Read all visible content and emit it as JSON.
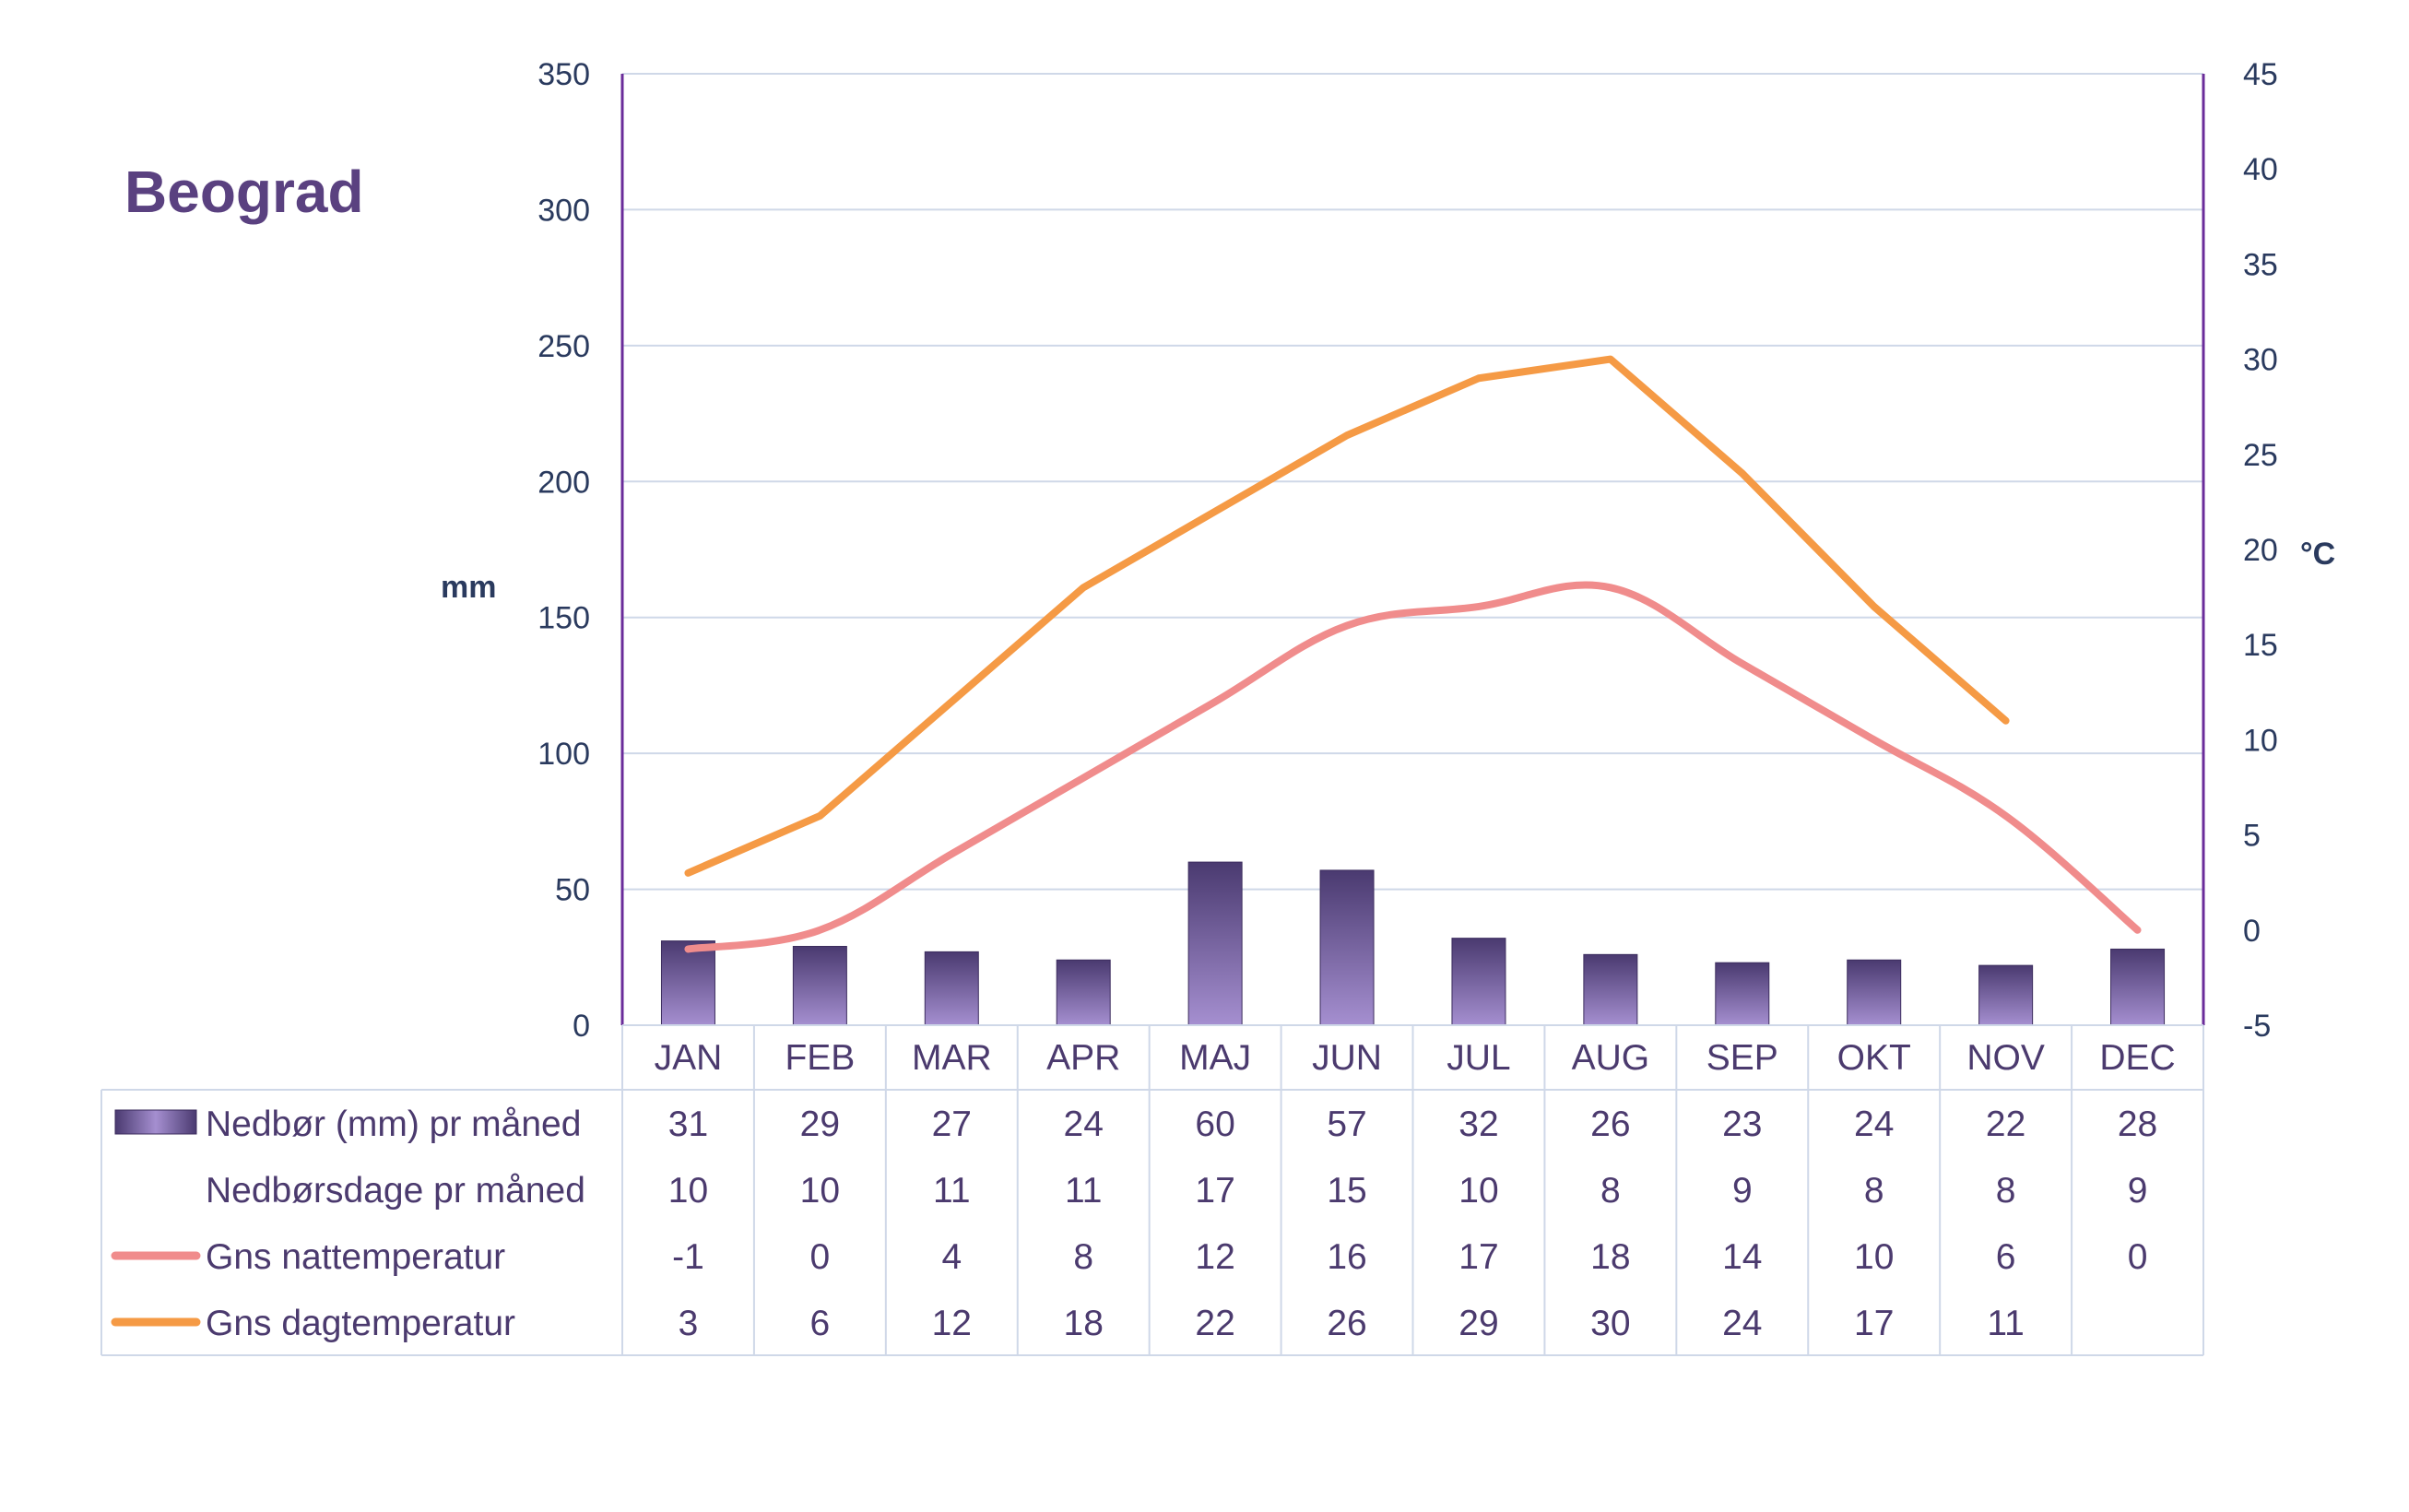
{
  "title": "Beograd",
  "chart_data": {
    "type": "bar",
    "categories": [
      "JAN",
      "FEB",
      "MAR",
      "APR",
      "MAJ",
      "JUN",
      "JUL",
      "AUG",
      "SEP",
      "OKT",
      "NOV",
      "DEC"
    ],
    "left_axis": {
      "label": "mm",
      "min": 0,
      "max": 350,
      "step": 50,
      "ticks": [
        "0",
        "50",
        "100",
        "150",
        "200",
        "250",
        "300",
        "350"
      ]
    },
    "right_axis": {
      "label": "°C",
      "min": -5,
      "max": 45,
      "step": 5,
      "ticks": [
        "-5",
        "0",
        "5",
        "10",
        "15",
        "20",
        "25",
        "30",
        "35",
        "40",
        "45"
      ]
    },
    "grid": true,
    "series": [
      {
        "name": "Nedbør (mm) pr måned",
        "type": "bar",
        "axis": "left",
        "color": "#5b4a80",
        "values": [
          31,
          29,
          27,
          24,
          60,
          57,
          32,
          26,
          23,
          24,
          22,
          28
        ]
      },
      {
        "name": "Nedbørsdage pr måned",
        "type": "table-only",
        "values": [
          10,
          10,
          11,
          11,
          17,
          15,
          10,
          8,
          9,
          8,
          8,
          9
        ]
      },
      {
        "name": "Gns nattemperatur",
        "type": "line",
        "axis": "right",
        "color": "#f08c8c",
        "values": [
          -1,
          0,
          4,
          8,
          12,
          16,
          17,
          18,
          14,
          10,
          6,
          0
        ]
      },
      {
        "name": "Gns dagtemperatur",
        "type": "line",
        "axis": "right",
        "color": "#f59a45",
        "values": [
          3,
          6,
          12,
          18,
          22,
          26,
          29,
          30,
          24,
          17,
          11,
          null
        ]
      }
    ]
  }
}
